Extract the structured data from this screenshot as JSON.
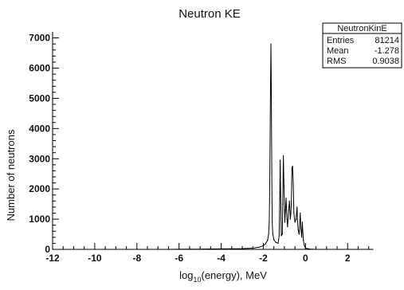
{
  "chart_data": {
    "type": "histogram",
    "title": "Neutron KE",
    "xlabel_parts": {
      "prefix": "log",
      "subscript": "10",
      "suffix": "(energy), MeV"
    },
    "ylabel": "Number of neutrons",
    "xlim": [
      -12,
      3.2
    ],
    "ylim": [
      0,
      7200
    ],
    "x_ticks": [
      -12,
      -10,
      -8,
      -6,
      -4,
      -2,
      0,
      2
    ],
    "x_tick_labels": [
      "-12",
      "-10",
      "-8",
      "-6",
      "-4",
      "-2",
      "0",
      "2"
    ],
    "y_ticks": [
      0,
      1000,
      2000,
      3000,
      4000,
      5000,
      6000,
      7000
    ],
    "y_tick_labels": [
      "0",
      "1000",
      "2000",
      "3000",
      "4000",
      "5000",
      "6000",
      "7000"
    ],
    "grid": false,
    "stats_box": {
      "name": "NeutronKinE",
      "rows": [
        {
          "label": "Entries",
          "value": "81214"
        },
        {
          "label": "Mean",
          "value": "-1.278"
        },
        {
          "label": "RMS",
          "value": "0.9038"
        }
      ]
    },
    "series": [
      {
        "points": [
          [
            -12,
            0
          ],
          [
            -10,
            0
          ],
          [
            -8,
            0
          ],
          [
            -6.5,
            0
          ],
          [
            -6,
            4
          ],
          [
            -5,
            8
          ],
          [
            -4,
            15
          ],
          [
            -3,
            25
          ],
          [
            -2.5,
            40
          ],
          [
            -2.2,
            70
          ],
          [
            -2.0,
            120
          ],
          [
            -1.9,
            180
          ],
          [
            -1.8,
            300
          ],
          [
            -1.75,
            500
          ],
          [
            -1.72,
            900
          ],
          [
            -1.7,
            1800
          ],
          [
            -1.68,
            3500
          ],
          [
            -1.66,
            5500
          ],
          [
            -1.64,
            6800
          ],
          [
            -1.62,
            5200
          ],
          [
            -1.6,
            2500
          ],
          [
            -1.58,
            900
          ],
          [
            -1.55,
            500
          ],
          [
            -1.5,
            320
          ],
          [
            -1.4,
            230
          ],
          [
            -1.3,
            200
          ],
          [
            -1.25,
            450
          ],
          [
            -1.22,
            1700
          ],
          [
            -1.2,
            2950
          ],
          [
            -1.18,
            1800
          ],
          [
            -1.15,
            450
          ],
          [
            -1.1,
            500
          ],
          [
            -1.08,
            1500
          ],
          [
            -1.05,
            3100
          ],
          [
            -1.02,
            2100
          ],
          [
            -0.98,
            900
          ],
          [
            -0.95,
            1300
          ],
          [
            -0.92,
            1700
          ],
          [
            -0.88,
            1000
          ],
          [
            -0.85,
            750
          ],
          [
            -0.8,
            1300
          ],
          [
            -0.76,
            1600
          ],
          [
            -0.72,
            1000
          ],
          [
            -0.7,
            1150
          ],
          [
            -0.67,
            1500
          ],
          [
            -0.64,
            2700
          ],
          [
            -0.61,
            2750
          ],
          [
            -0.58,
            2200
          ],
          [
            -0.55,
            1200
          ],
          [
            -0.5,
            900
          ],
          [
            -0.45,
            1000
          ],
          [
            -0.4,
            1400
          ],
          [
            -0.38,
            1000
          ],
          [
            -0.35,
            650
          ],
          [
            -0.3,
            500
          ],
          [
            -0.25,
            1200
          ],
          [
            -0.22,
            700
          ],
          [
            -0.18,
            400
          ],
          [
            -0.15,
            900
          ],
          [
            -0.1,
            300
          ],
          [
            -0.05,
            120
          ],
          [
            0,
            40
          ],
          [
            0.2,
            10
          ],
          [
            0.5,
            0
          ],
          [
            3.2,
            0
          ]
        ]
      }
    ]
  }
}
